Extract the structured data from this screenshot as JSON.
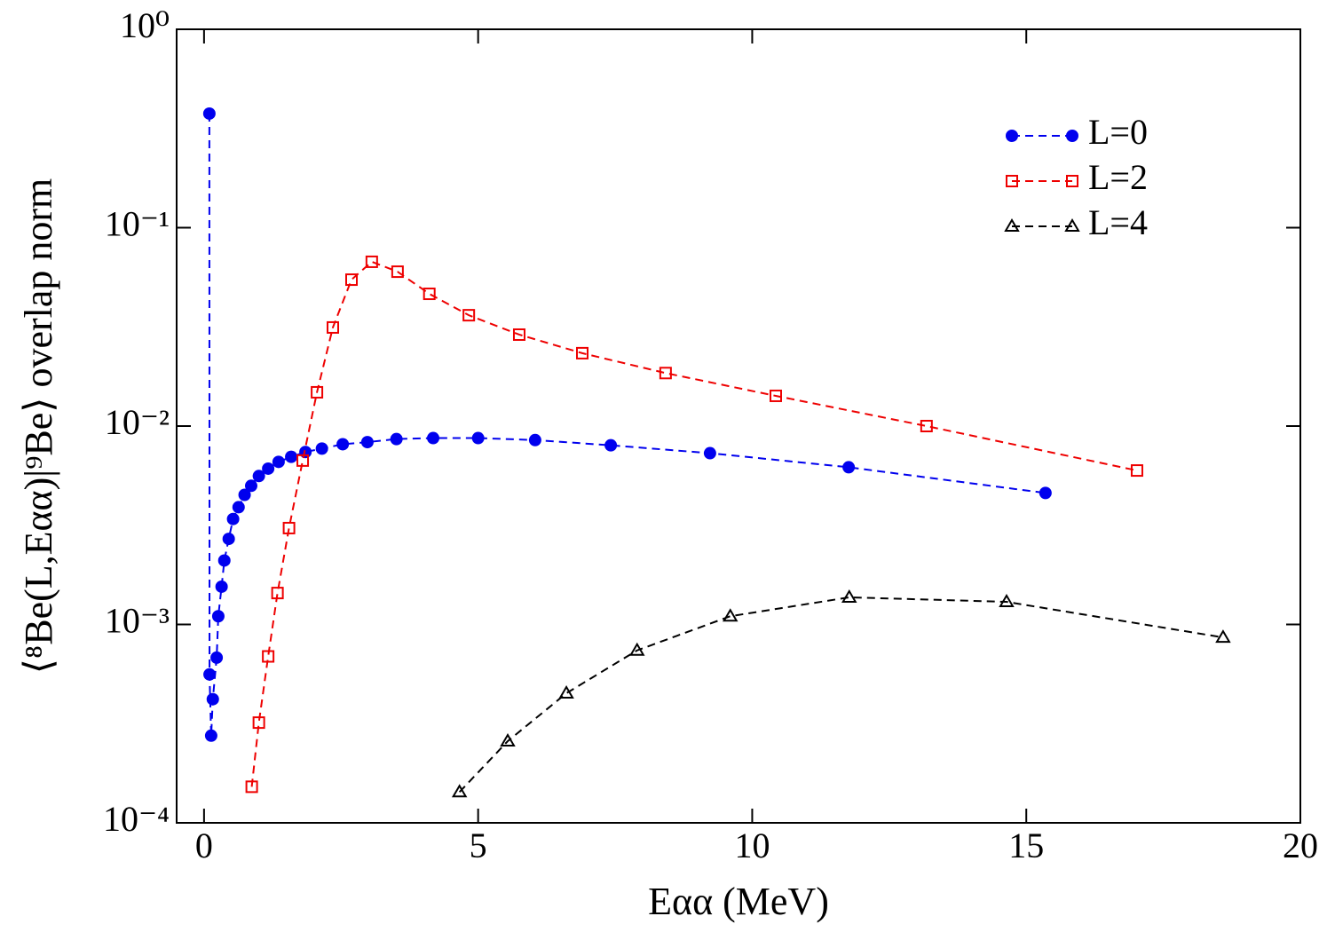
{
  "chart_data": {
    "type": "line",
    "xlabel": "Eαα (MeV)",
    "ylabel": "⟨⁸Be(L,Eαα)|⁹Be⟩ overlap norm",
    "xlim": [
      -0.5,
      20
    ],
    "ylim": [
      0.0001,
      1
    ],
    "yscale": "log",
    "xticks": [
      0,
      5,
      10,
      15,
      20
    ],
    "yticks": [
      {
        "value": 1,
        "label": "10⁰"
      },
      {
        "value": 0.1,
        "label": "10⁻¹"
      },
      {
        "value": 0.01,
        "label": "10⁻²"
      },
      {
        "value": 0.001,
        "label": "10⁻³"
      },
      {
        "value": 0.0001,
        "label": "10⁻⁴"
      }
    ],
    "legend": "upper right",
    "series": [
      {
        "name": "L=0",
        "color": "#0000ee",
        "marker": "circle",
        "x": [
          0.097,
          0.1,
          0.13,
          0.16,
          0.23,
          0.26,
          0.32,
          0.37,
          0.45,
          0.53,
          0.63,
          0.74,
          0.86,
          1.0,
          1.17,
          1.36,
          1.59,
          1.85,
          2.15,
          2.53,
          2.98,
          3.51,
          4.18,
          5.0,
          6.04,
          7.42,
          9.23,
          11.76,
          15.35
        ],
        "values": [
          0.376,
          0.00056,
          0.000275,
          0.00042,
          0.00068,
          0.0011,
          0.00155,
          0.0021,
          0.0027,
          0.0034,
          0.0039,
          0.0045,
          0.005,
          0.0056,
          0.0061,
          0.0066,
          0.007,
          0.0074,
          0.0077,
          0.0081,
          0.0083,
          0.0086,
          0.0087,
          0.0087,
          0.0085,
          0.008,
          0.0073,
          0.0062,
          0.0046
        ]
      },
      {
        "name": "L=2",
        "color": "#ee0000",
        "marker": "square",
        "x": [
          0.87,
          1.0,
          1.17,
          1.34,
          1.55,
          1.8,
          2.06,
          2.35,
          2.69,
          3.06,
          3.53,
          4.11,
          4.83,
          5.75,
          6.9,
          8.42,
          10.43,
          13.18,
          17.02
        ],
        "values": [
          0.000152,
          0.00032,
          0.00069,
          0.00144,
          0.00306,
          0.0067,
          0.0148,
          0.0314,
          0.0547,
          0.0673,
          0.06,
          0.0464,
          0.0362,
          0.0289,
          0.0233,
          0.0185,
          0.0142,
          0.01,
          0.00597
        ]
      },
      {
        "name": "L=4",
        "color": "#000000",
        "marker": "triangle",
        "x": [
          4.66,
          5.54,
          6.61,
          7.9,
          9.6,
          11.77,
          14.64,
          18.59
        ],
        "values": [
          0.000143,
          0.000258,
          0.00045,
          0.00074,
          0.0011,
          0.00137,
          0.0013,
          0.00086
        ]
      }
    ]
  }
}
